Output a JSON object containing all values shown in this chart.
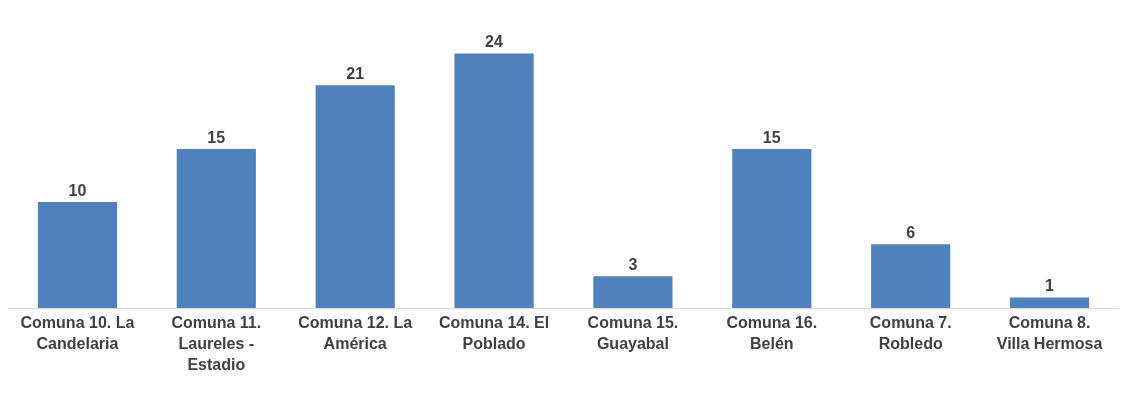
{
  "chart_data": {
    "type": "bar",
    "categories": [
      "Comuna 10. La Candelaria",
      "Comuna 11. Laureles - Estadio",
      "Comuna 12. La América",
      "Comuna 14. El Poblado",
      "Comuna 15. Guayabal",
      "Comuna 16. Belén",
      "Comuna 7. Robledo",
      "Comuna 8. Villa Hermosa"
    ],
    "values": [
      10,
      15,
      21,
      24,
      3,
      15,
      6,
      1
    ],
    "color": "#4f81bd",
    "data_labels": true
  }
}
